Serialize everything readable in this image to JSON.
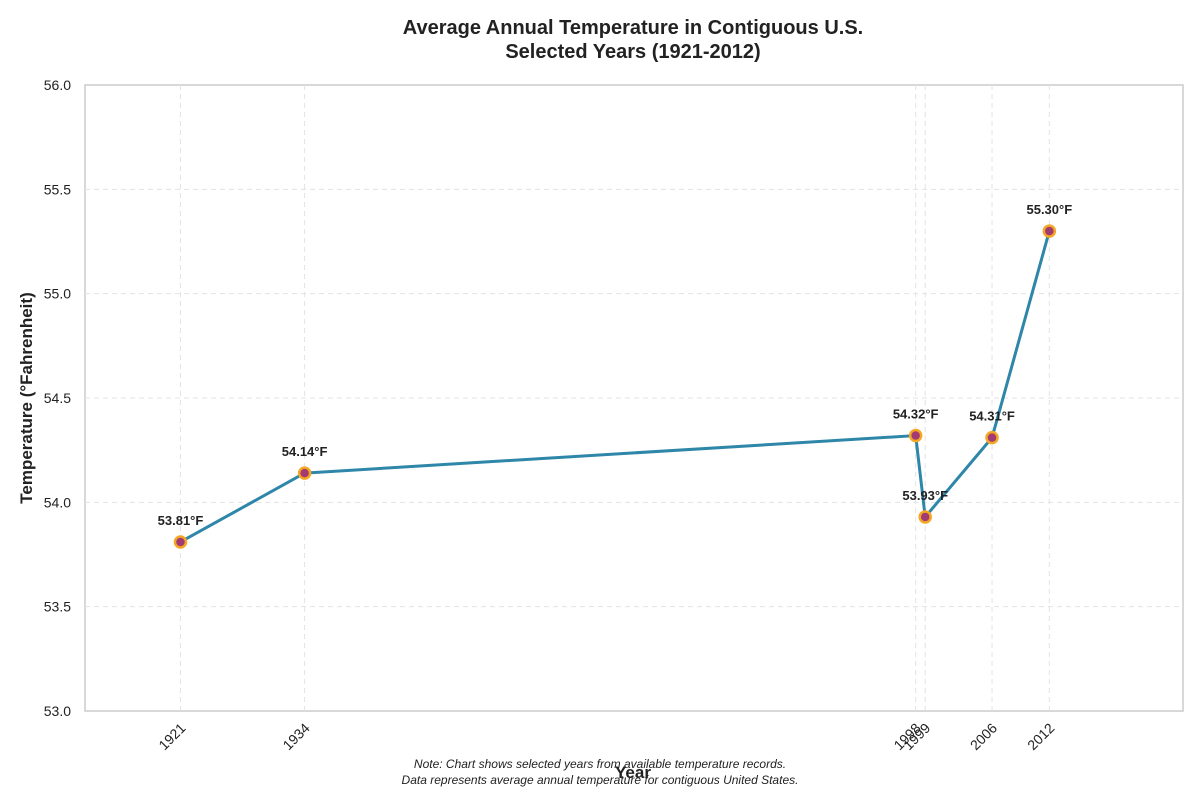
{
  "chart_data": {
    "type": "line",
    "title": "Average Annual Temperature in Contiguous U.S.",
    "subtitle": "Selected Years (1921-2012)",
    "xlabel": "Year",
    "ylabel": "Temperature (°Fahrenheit)",
    "xlim": [
      1911,
      2026
    ],
    "ylim": [
      53.0,
      56.0
    ],
    "yticks": [
      "53.0",
      "53.5",
      "54.0",
      "54.5",
      "55.0",
      "55.5",
      "56.0"
    ],
    "grid": true,
    "series": [
      {
        "x": [
          1921,
          1934,
          1998,
          1999,
          2006,
          2012
        ],
        "values": [
          53.81,
          54.14,
          54.32,
          53.93,
          54.31,
          55.3
        ],
        "labels": [
          "53.81°F",
          "54.14°F",
          "54.32°F",
          "53.93°F",
          "54.31°F",
          "55.30°F"
        ],
        "color": "#2e86a8",
        "marker_fill": "#a23b72",
        "marker_edge": "#f5a623"
      }
    ],
    "xtick_labels": [
      "1921",
      "1934",
      "1998",
      "1999",
      "2006",
      "2012"
    ],
    "notes": [
      "Note: Chart shows selected years from available temperature records.",
      "Data represents average annual temperature for contiguous United States."
    ]
  }
}
